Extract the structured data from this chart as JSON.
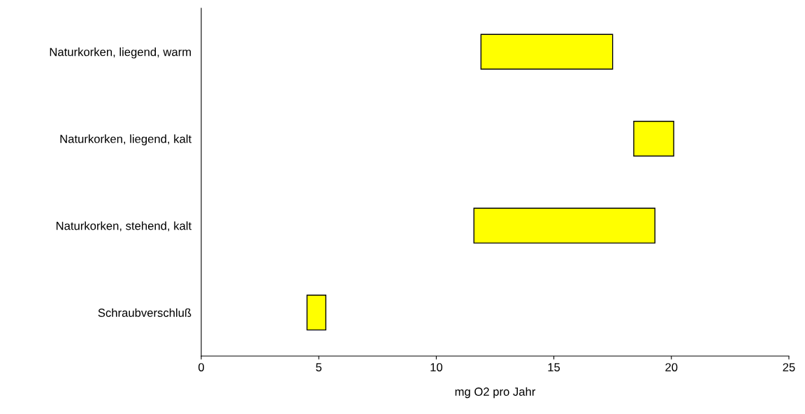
{
  "chart_data": {
    "type": "bar",
    "orientation": "horizontal",
    "categories": [
      "Naturkorken, liegend, warm",
      "Naturkorken, liegend, kalt",
      "Naturkorken, stehend, kalt",
      "Schraubverschluß"
    ],
    "base": [
      11.9,
      18.4,
      11.6,
      4.5
    ],
    "values": [
      5.6,
      1.7,
      7.7,
      0.8
    ],
    "color": "#ffff00",
    "xlabel": "mg O2 pro Jahr",
    "xlim": [
      0,
      25
    ],
    "xticks": [
      0,
      5,
      10,
      15,
      20,
      25
    ],
    "grid": false,
    "legend": false
  }
}
